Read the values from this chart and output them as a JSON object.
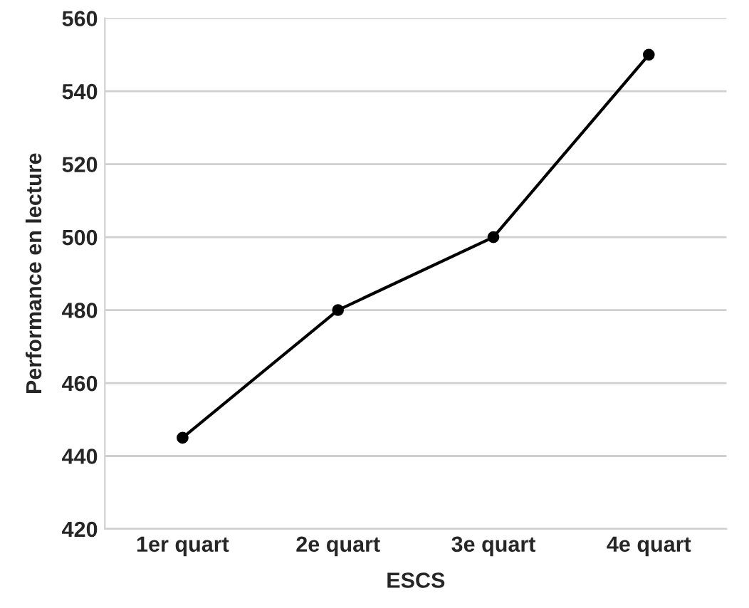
{
  "chart_data": {
    "type": "line",
    "xlabel": "ESCS",
    "ylabel": "Performance en lecture",
    "categories": [
      "1er quart",
      "2e quart",
      "3e quart",
      "4e quart"
    ],
    "series": [
      {
        "color": "#000000",
        "values": [
          445,
          480,
          500,
          550
        ]
      }
    ],
    "ylim": [
      420,
      560
    ],
    "yticks": [
      420,
      440,
      460,
      480,
      500,
      520,
      540,
      560
    ],
    "grid": "y",
    "marker": "circle",
    "line_style": "solid"
  }
}
